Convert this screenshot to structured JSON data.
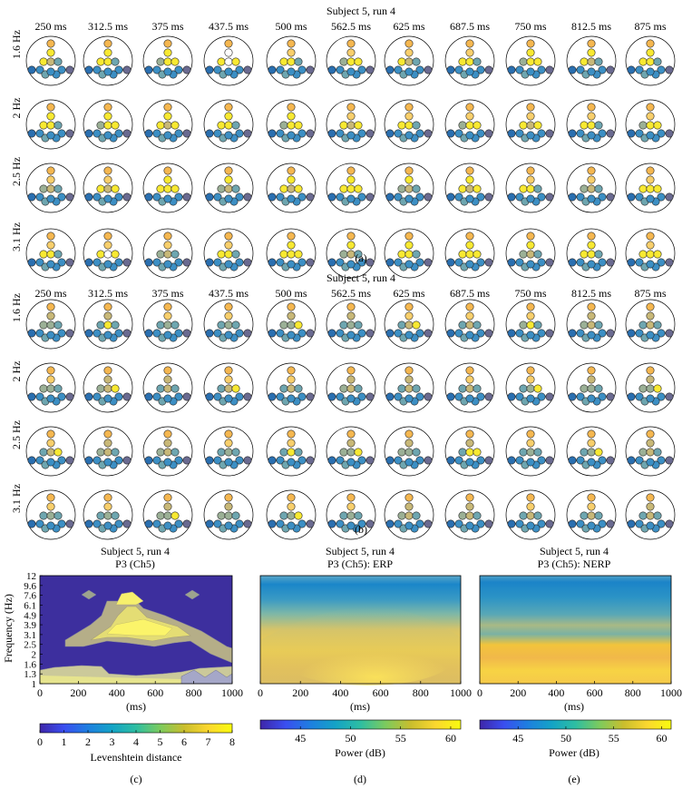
{
  "colors": {
    "parula": [
      "#3e26a8",
      "#3a4ef0",
      "#1e7fe0",
      "#14a3c6",
      "#2ebea2",
      "#7ccb5e",
      "#c9be2e",
      "#fbd72f",
      "#f9fb0e"
    ],
    "dot_palette": [
      "#fefefe",
      "#f8e932",
      "#f5b750",
      "#f8cf6c",
      "#c8b878",
      "#9bb096",
      "#6ea6b0",
      "#3c8fc4",
      "#2a6fb0",
      "#6a6a90"
    ],
    "erp_band": "#fbe25a",
    "nerp_band": "#f5c83a"
  },
  "panel_a": {
    "title": "Subject 5, run 4",
    "label": "(a)",
    "time_labels": [
      "250 ms",
      "312.5 ms",
      "375 ms",
      "437.5 ms",
      "500 ms",
      "562.5 ms",
      "625 ms",
      "687.5 ms",
      "750 ms",
      "812.5 ms",
      "875 ms"
    ],
    "freq_labels": [
      "1.6 Hz",
      "2 Hz",
      "2.5 Hz",
      "3.1 Hz"
    ]
  },
  "panel_b": {
    "title": "Subject 5, run 4",
    "label": "(b)",
    "time_labels": [
      "250 ms",
      "312.5 ms",
      "375 ms",
      "437.5 ms",
      "500 ms",
      "562.5 ms",
      "625 ms",
      "687.5 ms",
      "750 ms",
      "812.5 ms",
      "875 ms"
    ],
    "freq_labels": [
      "1.6 Hz",
      "2 Hz",
      "2.5 Hz",
      "3.1 Hz"
    ]
  },
  "chart_data": [
    {
      "type": "heatmap",
      "title": "Subject 5, run 4",
      "subtitle": "P3 (Ch5)",
      "xlabel": "(ms)",
      "ylabel": "Frequency (Hz)",
      "xlim": [
        0,
        1000
      ],
      "x_ticks": [
        "0",
        "200",
        "400",
        "600",
        "800",
        "1000"
      ],
      "y_ticks": [
        "1",
        "1.3",
        "1.6",
        "2",
        "2.5",
        "3.1",
        "3.9",
        "4.9",
        "6.1",
        "7.6",
        "9.6",
        "12"
      ],
      "colorbar": {
        "label": "Levenshtein distance",
        "ticks": [
          "0",
          "1",
          "2",
          "3",
          "4",
          "5",
          "6",
          "7",
          "8"
        ],
        "range": [
          0,
          8
        ]
      },
      "label": "(c)"
    },
    {
      "type": "heatmap",
      "title": "Subject 5, run 4",
      "subtitle": "P3 (Ch5): ERP",
      "xlabel": "(ms)",
      "xlim": [
        0,
        1000
      ],
      "x_ticks": [
        "0",
        "200",
        "400",
        "600",
        "800",
        "1000"
      ],
      "colorbar": {
        "label": "Power (dB)",
        "ticks": [
          "45",
          "50",
          "55",
          "60"
        ],
        "range": [
          41,
          61
        ]
      },
      "label": "(d)"
    },
    {
      "type": "heatmap",
      "title": "Subject 5, run 4",
      "subtitle": "P3 (Ch5): NERP",
      "xlabel": "(ms)",
      "xlim": [
        0,
        1000
      ],
      "x_ticks": [
        "0",
        "200",
        "400",
        "600",
        "800",
        "1000"
      ],
      "colorbar": {
        "label": "Power (dB)",
        "ticks": [
          "45",
          "50",
          "55",
          "60"
        ],
        "range": [
          41,
          61
        ]
      },
      "label": "(e)"
    }
  ]
}
